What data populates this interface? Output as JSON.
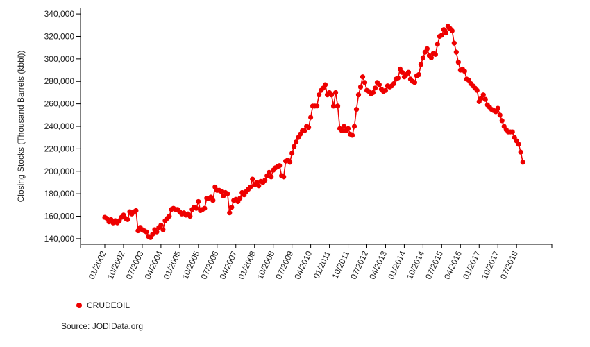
{
  "chart_data": {
    "type": "line",
    "ylabel": "Closing Stocks (Thousand Barrels (kbbl))",
    "xlabel": "",
    "ylim": [
      135000,
      345000
    ],
    "y_ticks": [
      140000,
      160000,
      180000,
      200000,
      220000,
      240000,
      260000,
      280000,
      300000,
      320000,
      340000
    ],
    "y_tick_labels": [
      "140,000",
      "160,000",
      "180,000",
      "200,000",
      "220,000",
      "240,000",
      "260,000",
      "280,000",
      "300,000",
      "320,000",
      "340,000"
    ],
    "x_tick_labels": [
      "01/2002",
      "10/2002",
      "07/2003",
      "04/2004",
      "01/2005",
      "10/2005",
      "07/2006",
      "04/2007",
      "01/2008",
      "10/2008",
      "07/2009",
      "04/2010",
      "01/2011",
      "10/2011",
      "07/2012",
      "04/2013",
      "01/2014",
      "10/2014",
      "07/2015",
      "04/2016",
      "01/2017",
      "10/2017",
      "07/2018"
    ],
    "x_start": "01/2002",
    "x_end": "04/2019",
    "grid": false,
    "legend_position": "bottom-left",
    "series": [
      {
        "name": "CRUDEOIL",
        "color": "#ee0000",
        "marker": "circle",
        "values": [
          159000,
          158000,
          155000,
          157000,
          154000,
          156000,
          154000,
          156000,
          159000,
          161000,
          158000,
          157000,
          164000,
          162000,
          164000,
          165000,
          147000,
          150000,
          148000,
          147000,
          146000,
          142000,
          141000,
          144000,
          148000,
          146000,
          150000,
          152000,
          148000,
          156000,
          158000,
          160000,
          166000,
          167000,
          166000,
          166000,
          164000,
          162000,
          163000,
          161000,
          162000,
          160000,
          166000,
          168000,
          167000,
          173000,
          165000,
          166000,
          167000,
          176000,
          176000,
          177000,
          174000,
          186000,
          183000,
          183000,
          182000,
          178000,
          181000,
          180000,
          163000,
          168000,
          174000,
          175000,
          173000,
          176000,
          181000,
          179000,
          182000,
          184000,
          186000,
          193000,
          188000,
          190000,
          187000,
          191000,
          190000,
          192000,
          196000,
          199000,
          195000,
          201000,
          203000,
          204000,
          205000,
          196000,
          195000,
          209000,
          210000,
          208000,
          216000,
          222000,
          226000,
          230000,
          233000,
          236000,
          236000,
          240000,
          239000,
          248000,
          258000,
          258000,
          258000,
          268000,
          272000,
          274000,
          277000,
          268000,
          270000,
          268000,
          258000,
          270000,
          258000,
          238000,
          236000,
          240000,
          236000,
          238000,
          233000,
          232000,
          240000,
          255000,
          268000,
          275000,
          284000,
          279000,
          272000,
          271000,
          269000,
          270000,
          274000,
          279000,
          277000,
          273000,
          271000,
          272000,
          276000,
          275000,
          276000,
          278000,
          282000,
          283000,
          291000,
          288000,
          284000,
          286000,
          288000,
          282000,
          280000,
          279000,
          285000,
          286000,
          295000,
          301000,
          306000,
          309000,
          303000,
          301000,
          305000,
          304000,
          313000,
          320000,
          321000,
          326000,
          323000,
          329000,
          327000,
          325000,
          314000,
          306000,
          297000,
          290000,
          291000,
          289000,
          282000,
          281000,
          278000,
          276000,
          274000,
          272000,
          262000,
          265000,
          268000,
          264000,
          259000,
          257000,
          255000,
          254000,
          253000,
          256000,
          250000,
          245000,
          240000,
          237000,
          235000,
          235000,
          235000,
          230000,
          227000,
          224000,
          217000,
          208000
        ]
      }
    ]
  },
  "legend": {
    "items": [
      {
        "label": "CRUDEOIL",
        "color": "#ee0000"
      }
    ]
  },
  "source": "Source: JODIData.org"
}
